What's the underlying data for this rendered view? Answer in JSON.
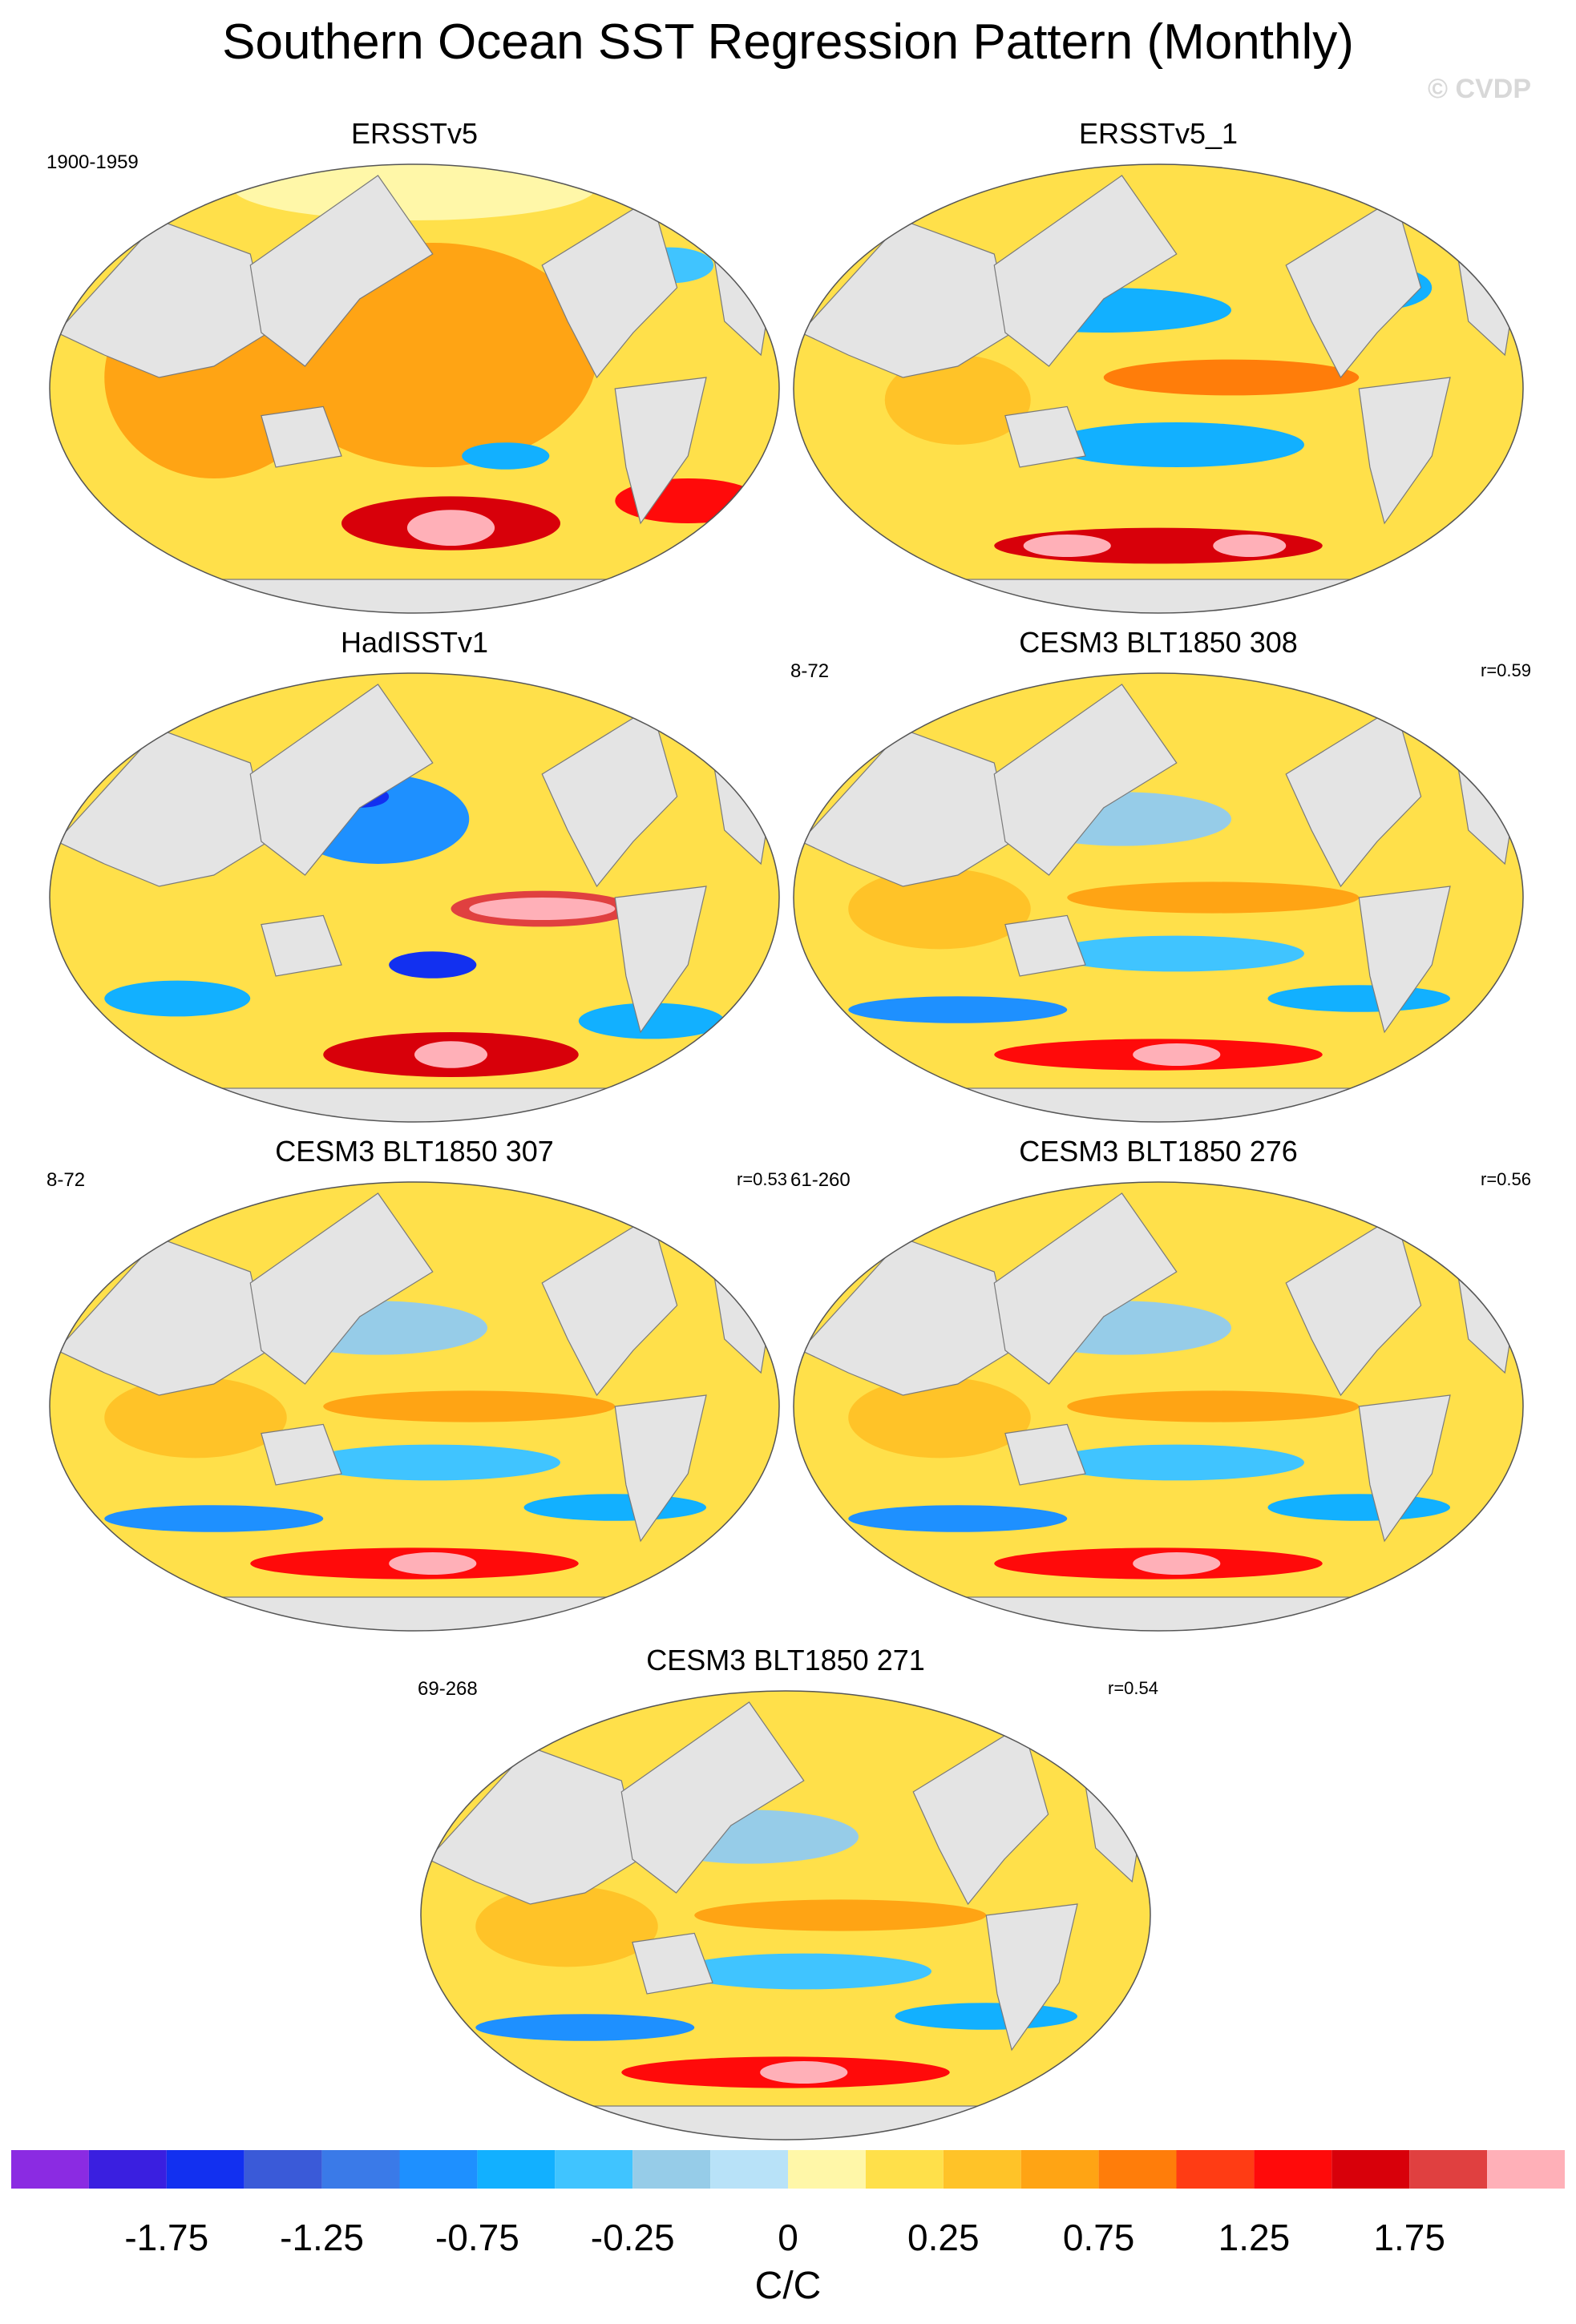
{
  "figure": {
    "title": "Southern Ocean SST Regression Pattern (Monthly)",
    "watermark": "© CVDP",
    "units": "C/C"
  },
  "panels": [
    {
      "title": "ERSSTv5",
      "years": "1900-1959",
      "corr": "",
      "pattern": "obs1"
    },
    {
      "title": "ERSSTv5_1",
      "years": "",
      "corr": "",
      "pattern": "obs2"
    },
    {
      "title": "HadISSTv1",
      "years": "",
      "corr": "",
      "pattern": "had"
    },
    {
      "title": "CESM3 BLT1850 308",
      "years": "8-72",
      "corr": "r=0.59",
      "pattern": "model"
    },
    {
      "title": "CESM3 BLT1850 307",
      "years": "8-72",
      "corr": "r=0.53",
      "pattern": "model"
    },
    {
      "title": "CESM3 BLT1850 276",
      "years": "61-260",
      "corr": "r=0.56",
      "pattern": "model"
    },
    {
      "title": "CESM3 BLT1850 271",
      "years": "69-268",
      "corr": "r=0.54",
      "pattern": "model"
    }
  ],
  "colorbar": {
    "colors": [
      "#8b2be2",
      "#3a1fe0",
      "#1230f0",
      "#3a5ad8",
      "#3a7ae8",
      "#1e90ff",
      "#12b0ff",
      "#40c4ff",
      "#96cce8",
      "#b8e2f8",
      "#fff7a8",
      "#ffe04a",
      "#ffc328",
      "#ffa414",
      "#ff7d0a",
      "#ff3c14",
      "#ff0a0a",
      "#d8000a",
      "#e04040",
      "#ffb0b8"
    ],
    "tick_labels": [
      "-1.75",
      "-1.25",
      "-0.75",
      "-0.25",
      "0",
      "0.25",
      "0.75",
      "1.25",
      "1.75"
    ]
  },
  "colors": {
    "land": "#e4e4e4",
    "coast": "#7a7a7a"
  }
}
